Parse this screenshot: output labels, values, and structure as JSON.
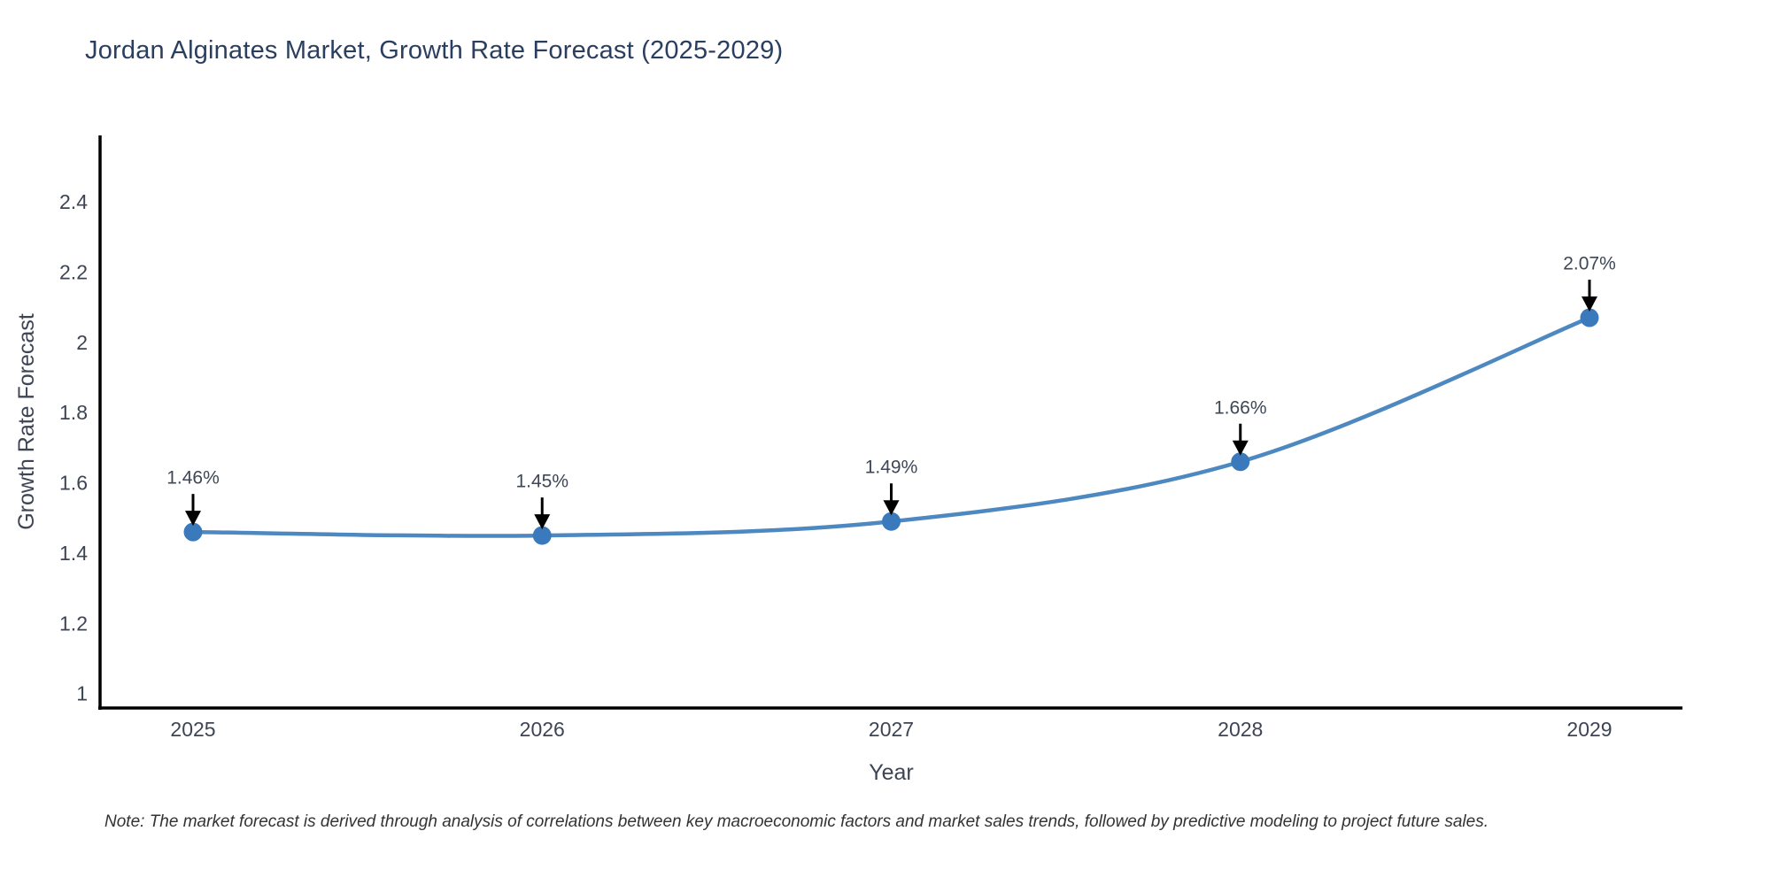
{
  "title": "Jordan Alginates Market, Growth Rate Forecast (2025-2029)",
  "note": "Note: The market forecast is derived through analysis of correlations between key macroeconomic factors and market sales trends, followed by predictive modeling to project future sales.",
  "chart_data": {
    "type": "line",
    "title": "Jordan Alginates Market, Growth Rate Forecast (2025-2029)",
    "xlabel": "Year",
    "ylabel": "Growth Rate Forecast",
    "categories": [
      "2025",
      "2026",
      "2027",
      "2028",
      "2029"
    ],
    "x": [
      2025,
      2026,
      2027,
      2028,
      2029
    ],
    "values": [
      1.46,
      1.45,
      1.49,
      1.66,
      2.07
    ],
    "point_labels": [
      "1.46%",
      "1.45%",
      "1.49%",
      "1.66%",
      "2.07%"
    ],
    "yticks": [
      1,
      1.2,
      1.4,
      1.6,
      1.8,
      2,
      2.2,
      2.4
    ],
    "ylim": [
      0.959,
      2.589
    ],
    "grid": false,
    "line_shape": "spline",
    "legend": null,
    "annotations_style": "value label above black down-arrow pointing at each marker",
    "colors": {
      "background": "#ffffff",
      "line": "#4e88c1",
      "marker": "#3a79bb",
      "axis_line": "#000000",
      "tick_label": "#3d4554",
      "axis_title": "#3d4554",
      "title": "#2a3f5f",
      "annotation_text": "#3e4756",
      "arrow": "#000000",
      "note": "#333333"
    }
  }
}
